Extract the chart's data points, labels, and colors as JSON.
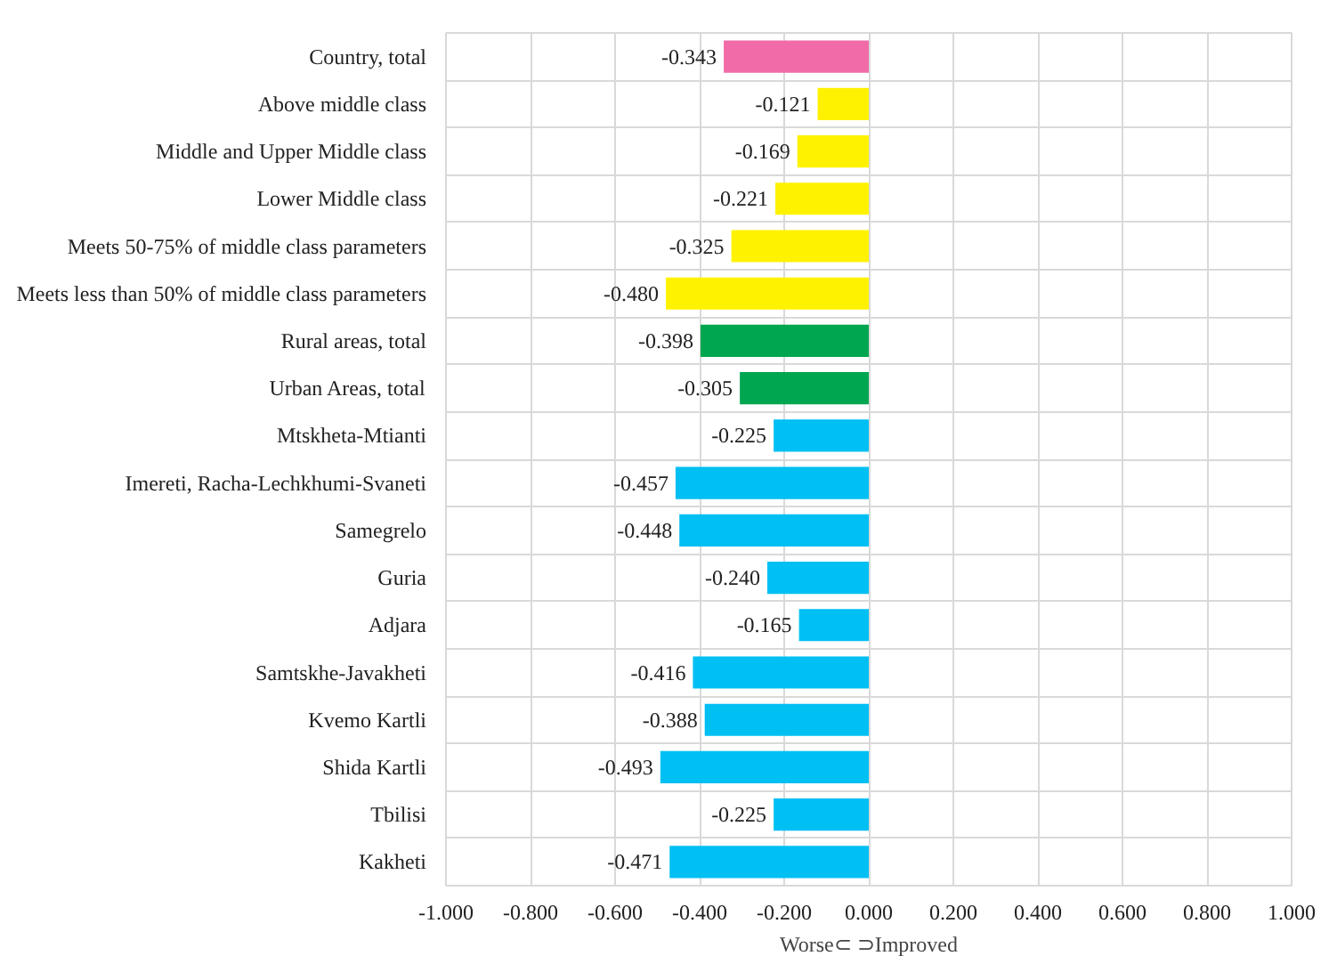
{
  "chart_data": {
    "type": "bar",
    "orientation": "horizontal",
    "xlabel": "Worse⊂ ⊃Improved",
    "categories": [
      "Country, total",
      "Above middle class",
      "Middle and Upper Middle class",
      "Lower Middle class",
      "Meets 50-75% of middle class parameters",
      "Meets less than 50% of middle class parameters",
      "Rural areas, total",
      "Urban Areas, total",
      "Mtskheta-Mtianti",
      "Imereti, Racha-Lechkhumi-Svaneti",
      "Samegrelo",
      "Guria",
      "Adjara",
      "Samtskhe-Javakheti",
      "Kvemo Kartli",
      "Shida Kartli",
      "Tbilisi",
      "Kakheti"
    ],
    "values": [
      -0.343,
      -0.121,
      -0.169,
      -0.221,
      -0.325,
      -0.48,
      -0.398,
      -0.305,
      -0.225,
      -0.457,
      -0.448,
      -0.24,
      -0.165,
      -0.416,
      -0.388,
      -0.493,
      -0.225,
      -0.471
    ],
    "value_labels": [
      "-0.343",
      "-0.121",
      "-0.169",
      "-0.221",
      "-0.325",
      "-0.480",
      "-0.398",
      "-0.305",
      "-0.225",
      "-0.457",
      "-0.448",
      "-0.240",
      "-0.165",
      "-0.416",
      "-0.388",
      "-0.493",
      "-0.225",
      "-0.471"
    ],
    "colors": [
      "#f06ba8",
      "#fff200",
      "#fff200",
      "#fff200",
      "#fff200",
      "#fff200",
      "#00a650",
      "#00a650",
      "#00bff3",
      "#00bff3",
      "#00bff3",
      "#00bff3",
      "#00bff3",
      "#00bff3",
      "#00bff3",
      "#00bff3",
      "#00bff3",
      "#00bff3"
    ],
    "xlim": [
      -1.0,
      1.0
    ],
    "xticks": [
      {
        "value": -1.0,
        "label": "-1.000"
      },
      {
        "value": -0.8,
        "label": "-0.800"
      },
      {
        "value": -0.6,
        "label": "-0.600"
      },
      {
        "value": -0.4,
        "label": "-0.400"
      },
      {
        "value": -0.2,
        "label": "-0.200"
      },
      {
        "value": 0.0,
        "label": "0.000"
      },
      {
        "value": 0.2,
        "label": "0.200"
      },
      {
        "value": 0.4,
        "label": "0.400"
      },
      {
        "value": 0.6,
        "label": "0.600"
      },
      {
        "value": 0.8,
        "label": "0.800"
      },
      {
        "value": 1.0,
        "label": "1.000"
      }
    ],
    "grid": true
  }
}
